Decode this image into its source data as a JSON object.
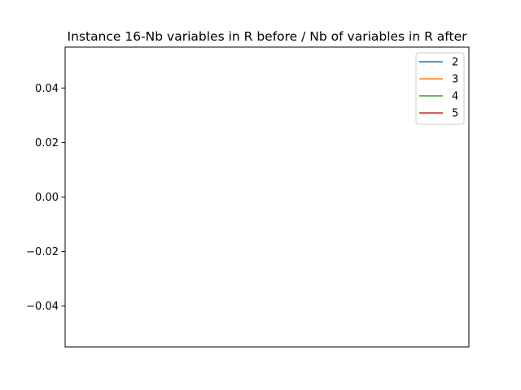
{
  "chart_data": {
    "type": "line",
    "title": "Instance 16-Nb variables in R before / Nb of variables in R after",
    "xlabel": "",
    "ylabel": "",
    "x": [],
    "series": [
      {
        "name": "2",
        "color": "#1f77b4",
        "values": []
      },
      {
        "name": "3",
        "color": "#ff7f0e",
        "values": []
      },
      {
        "name": "4",
        "color": "#2ca02c",
        "values": []
      },
      {
        "name": "5",
        "color": "#d62728",
        "values": []
      }
    ],
    "ylim": [
      -0.055,
      0.055
    ],
    "yticks": [
      0.04,
      0.02,
      0.0,
      -0.02,
      -0.04
    ],
    "ytick_labels": [
      "0.04",
      "0.02",
      "0.00",
      "−0.02",
      "−0.04"
    ],
    "xticks": [],
    "grid": false,
    "legend_position": "top-right"
  }
}
